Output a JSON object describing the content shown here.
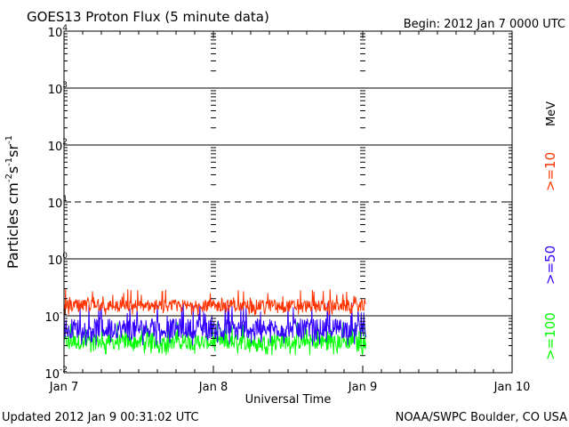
{
  "header": {
    "title": "GOES13 Proton Flux (5 minute data)",
    "begin": "Begin: 2012 Jan 7 0000 UTC"
  },
  "footer": {
    "updated": "Updated 2012 Jan  9 00:31:02 UTC",
    "credit": "NOAA/SWPC Boulder, CO USA"
  },
  "colors": {
    "ge10": "#ff3300",
    "ge50": "#3300ff",
    "ge100": "#00ff00",
    "axis": "#000000"
  },
  "chart_data": {
    "type": "line",
    "title": "GOES13 Proton Flux (5 minute data)",
    "xlabel": "Universal Time",
    "ylabel_base": "Particles cm",
    "ylabel_parts": [
      "Particles cm",
      "-2",
      "s",
      "-1",
      "sr",
      "-1"
    ],
    "yscale": "log",
    "ylim": [
      0.01,
      10000
    ],
    "xlim_days": [
      0,
      3
    ],
    "x_ticks": [
      "Jan 7",
      "Jan 8",
      "Jan 9",
      "Jan 10"
    ],
    "y_ticks": [
      {
        "base": "10",
        "exp": "-2"
      },
      {
        "base": "10",
        "exp": "-1"
      },
      {
        "base": "10",
        "exp": "0"
      },
      {
        "base": "10",
        "exp": "1"
      },
      {
        "base": "10",
        "exp": "2"
      },
      {
        "base": "10",
        "exp": "3"
      },
      {
        "base": "10",
        "exp": "4"
      }
    ],
    "reference_lines": [
      {
        "value": 0.1,
        "style": "solid"
      },
      {
        "value": 1,
        "style": "solid"
      },
      {
        "value": 10,
        "style": "dashed"
      },
      {
        "value": 100,
        "style": "solid"
      },
      {
        "value": 1000,
        "style": "solid"
      }
    ],
    "legend": {
      "unit": "MeV",
      "entries": [
        ">=10",
        ">=50",
        ">=100"
      ],
      "placement": "right"
    },
    "data_end_day": 2.02,
    "series": [
      {
        "name": ">=10",
        "color": "#ff3300",
        "typical": 0.15,
        "min": 0.1,
        "max": 0.3
      },
      {
        "name": ">=50",
        "color": "#3300ff",
        "typical": 0.06,
        "min": 0.03,
        "max": 0.18
      },
      {
        "name": ">=100",
        "color": "#00ff00",
        "typical": 0.035,
        "min": 0.02,
        "max": 0.08
      }
    ]
  }
}
